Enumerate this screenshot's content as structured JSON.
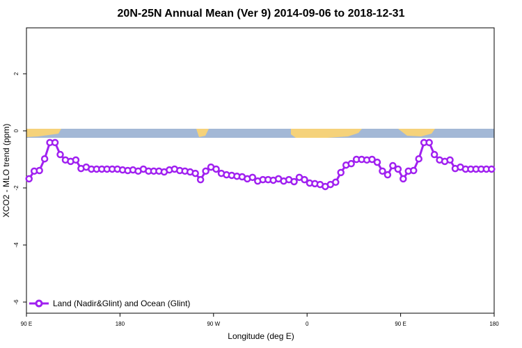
{
  "chart_data": {
    "type": "line",
    "title": "20N-25N Annual Mean (Ver 9)   2014-09-06 to 2018-12-31",
    "x_label": "Longitude (deg E)",
    "y_label": "XCO2 - MLO trend (ppm)",
    "x": [
      92.5,
      97.5,
      102.5,
      107.5,
      112.5,
      117.5,
      122.5,
      127.5,
      132.5,
      137.5,
      142.5,
      147.5,
      152.5,
      157.5,
      162.5,
      167.5,
      172.5,
      177.5,
      182.5,
      187.5,
      192.5,
      197.5,
      202.5,
      207.5,
      212.5,
      217.5,
      222.5,
      227.5,
      232.5,
      237.5,
      242.5,
      247.5,
      252.5,
      257.5,
      262.5,
      267.5,
      272.5,
      277.5,
      282.5,
      287.5,
      292.5,
      297.5,
      302.5,
      307.5,
      312.5,
      317.5,
      322.5,
      327.5,
      332.5,
      337.5,
      342.5,
      347.5,
      352.5,
      357.5,
      362.5,
      367.5,
      372.5,
      377.5,
      382.5,
      387.5,
      392.5,
      397.5,
      402.5,
      407.5,
      412.5,
      417.5,
      422.5,
      427.5,
      432.5,
      437.5,
      442.5,
      447.5,
      452.5,
      457.5,
      462.5,
      467.5,
      472.5,
      477.5,
      482.5,
      487.5,
      492.5,
      497.5,
      502.5,
      507.5,
      512.5,
      517.5,
      522.5,
      527.5,
      532.5,
      537.5
    ],
    "series": [
      {
        "name": "Land (Nadir&Glint) and Ocean (Glint)",
        "color": "#a020f0",
        "values": [
          -1.68,
          -1.41,
          -1.39,
          -0.98,
          -0.41,
          -0.41,
          -0.83,
          -1.02,
          -1.07,
          -1.02,
          -1.32,
          -1.27,
          -1.34,
          -1.34,
          -1.34,
          -1.34,
          -1.34,
          -1.34,
          -1.37,
          -1.39,
          -1.37,
          -1.41,
          -1.34,
          -1.41,
          -1.41,
          -1.41,
          -1.44,
          -1.37,
          -1.34,
          -1.39,
          -1.41,
          -1.44,
          -1.49,
          -1.71,
          -1.41,
          -1.27,
          -1.34,
          -1.49,
          -1.54,
          -1.56,
          -1.59,
          -1.61,
          -1.68,
          -1.63,
          -1.76,
          -1.71,
          -1.71,
          -1.73,
          -1.68,
          -1.76,
          -1.71,
          -1.78,
          -1.63,
          -1.71,
          -1.83,
          -1.85,
          -1.88,
          -1.95,
          -1.88,
          -1.8,
          -1.46,
          -1.2,
          -1.15,
          -1.0,
          -1.0,
          -1.02,
          -1.0,
          -1.1,
          -1.41,
          -1.54,
          -1.22,
          -1.34,
          -1.68,
          -1.41,
          -1.39,
          -0.98,
          -0.41,
          -0.41,
          -0.83,
          -1.02,
          -1.07,
          -1.02,
          -1.32,
          -1.27,
          -1.34,
          -1.34,
          -1.34,
          -1.34,
          -1.34,
          -1.34
        ]
      }
    ],
    "xlim": [
      90,
      540
    ],
    "xticks": [
      {
        "value": 90,
        "label": "90 E"
      },
      180,
      {
        "value": 270,
        "label": "90 W"
      },
      {
        "value": 360,
        "label": "0"
      },
      {
        "value": 450,
        "label": "90 E"
      },
      {
        "value": 540,
        "label": "180"
      }
    ],
    "ylim": [
      -6.39,
      3.61
    ],
    "yticks": [
      -6,
      -4,
      -2,
      0,
      2
    ],
    "legend": "bottom-left"
  }
}
